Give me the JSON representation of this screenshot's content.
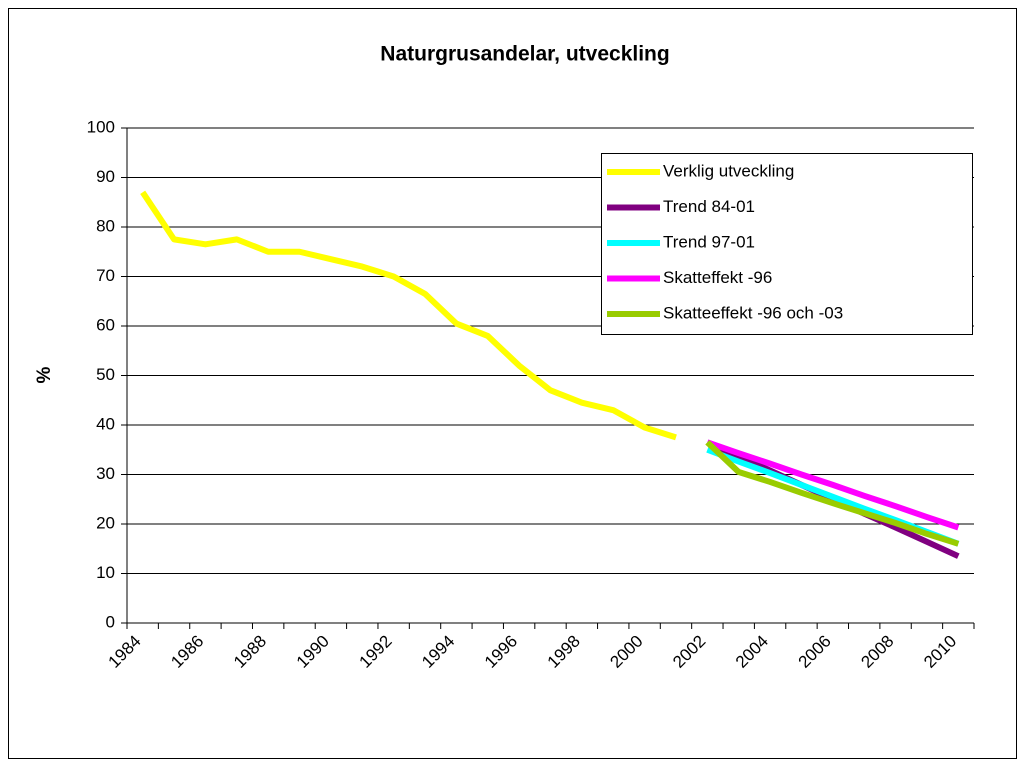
{
  "chart_data": {
    "type": "line",
    "title": "Naturgrusandelar, utveckling",
    "y_label": "%",
    "categories": [
      "1984",
      null,
      "1986",
      null,
      "1988",
      null,
      "1990",
      null,
      "1992",
      null,
      "1994",
      null,
      "1996",
      null,
      "1998",
      null,
      "2000",
      null,
      "2002",
      null,
      "2004",
      null,
      "2006",
      null,
      "2008",
      null,
      "2010"
    ],
    "series": [
      {
        "name": "Verklig utveckling",
        "color": "#ffff00",
        "values": [
          87,
          77.5,
          76.5,
          77.5,
          75,
          75,
          73.5,
          72,
          70,
          66.5,
          60.5,
          58,
          52,
          47,
          44.5,
          43,
          39.5,
          37.5,
          null,
          null,
          null,
          null,
          null,
          null,
          null,
          null,
          null
        ]
      },
      {
        "name": "Trend 84-01",
        "color": "#800080",
        "values": [
          null,
          null,
          null,
          null,
          null,
          null,
          null,
          null,
          null,
          null,
          null,
          null,
          null,
          null,
          null,
          null,
          null,
          null,
          36.5,
          33.6,
          30.8,
          27.9,
          25,
          22.1,
          19.3,
          16.4,
          13.5
        ]
      },
      {
        "name": "Trend 97-01",
        "color": "#00ffff",
        "values": [
          null,
          null,
          null,
          null,
          null,
          null,
          null,
          null,
          null,
          null,
          null,
          null,
          null,
          null,
          null,
          null,
          null,
          null,
          35,
          32.6,
          30.3,
          27.9,
          25.5,
          23.1,
          20.8,
          18.4,
          16
        ]
      },
      {
        "name": "Skatteffekt -96",
        "color": "#ff00ff",
        "values": [
          null,
          null,
          null,
          null,
          null,
          null,
          null,
          null,
          null,
          null,
          null,
          null,
          null,
          null,
          null,
          null,
          null,
          null,
          36.5,
          34.3,
          32.2,
          30,
          27.9,
          25.7,
          23.6,
          21.4,
          19.3
        ]
      },
      {
        "name": "Skatteeffekt -96 och -03",
        "color": "#99cc00",
        "values": [
          null,
          null,
          null,
          null,
          null,
          null,
          null,
          null,
          null,
          null,
          null,
          null,
          null,
          null,
          null,
          null,
          null,
          null,
          36.5,
          30.5,
          28.5,
          26.3,
          24.2,
          22.2,
          20.2,
          18,
          16
        ]
      }
    ],
    "ylim": [
      0,
      100
    ],
    "yticks": [
      0,
      10,
      20,
      30,
      40,
      50,
      60,
      70,
      80,
      90,
      100
    ],
    "grid": true
  }
}
